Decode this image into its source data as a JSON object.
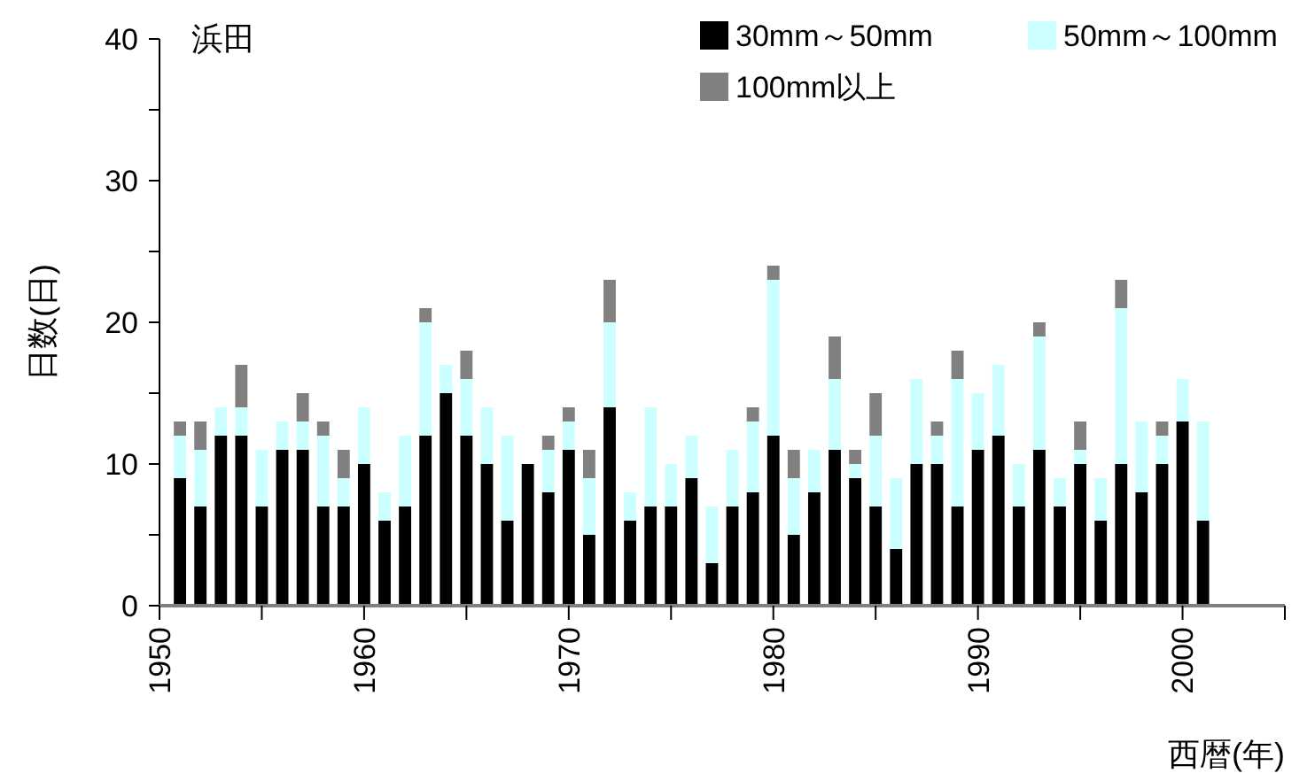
{
  "chart_data": {
    "type": "bar",
    "stacked": true,
    "title": "浜田",
    "xlabel": "西暦(年)",
    "ylabel": "日数(日)",
    "x": [
      1951,
      1952,
      1953,
      1954,
      1955,
      1956,
      1957,
      1958,
      1959,
      1960,
      1961,
      1962,
      1963,
      1964,
      1965,
      1966,
      1967,
      1968,
      1969,
      1970,
      1971,
      1972,
      1973,
      1974,
      1975,
      1976,
      1977,
      1978,
      1979,
      1980,
      1981,
      1982,
      1983,
      1984,
      1985,
      1986,
      1987,
      1988,
      1989,
      1990,
      1991,
      1992,
      1993,
      1994,
      1995,
      1996,
      1997,
      1998,
      1999,
      2000,
      2001
    ],
    "series": [
      {
        "name": "30mm～50mm",
        "color": "#000000",
        "values": [
          9,
          7,
          12,
          12,
          7,
          11,
          11,
          7,
          7,
          10,
          6,
          7,
          12,
          15,
          12,
          10,
          6,
          10,
          8,
          11,
          5,
          14,
          6,
          7,
          7,
          9,
          3,
          7,
          8,
          12,
          5,
          8,
          11,
          9,
          7,
          4,
          10,
          10,
          7,
          11,
          12,
          7,
          11,
          7,
          10,
          6,
          10,
          8,
          10,
          13,
          6
        ]
      },
      {
        "name": "50mm～100mm",
        "color": "#ccffff",
        "values": [
          3,
          4,
          2,
          2,
          4,
          2,
          2,
          5,
          2,
          4,
          2,
          5,
          8,
          2,
          4,
          4,
          6,
          0,
          3,
          2,
          4,
          6,
          2,
          7,
          3,
          3,
          4,
          4,
          5,
          11,
          4,
          3,
          5,
          1,
          5,
          5,
          6,
          2,
          9,
          4,
          5,
          3,
          8,
          2,
          1,
          3,
          11,
          5,
          2,
          3,
          7
        ]
      },
      {
        "name": "100mm以上",
        "color": "#808080",
        "values": [
          1,
          2,
          0,
          3,
          0,
          0,
          2,
          1,
          2,
          0,
          0,
          0,
          1,
          0,
          2,
          0,
          0,
          0,
          1,
          1,
          2,
          3,
          0,
          0,
          0,
          0,
          0,
          0,
          1,
          1,
          2,
          0,
          3,
          1,
          3,
          0,
          0,
          1,
          2,
          0,
          0,
          0,
          1,
          0,
          2,
          0,
          2,
          0,
          1,
          0,
          0
        ]
      }
    ],
    "xlim": [
      1950,
      2005
    ],
    "xticks": [
      1950,
      {
        "value": 1955,
        "label": null
      },
      1960,
      {
        "value": 1965,
        "label": null
      },
      1970,
      {
        "value": 1975,
        "label": null
      },
      1980,
      {
        "value": 1985,
        "label": null
      },
      1990,
      {
        "value": 1995,
        "label": null
      },
      2000,
      {
        "value": 2005,
        "label": null
      }
    ],
    "ylim": [
      0,
      40
    ],
    "yticks": [
      0,
      {
        "value": 5,
        "label": null
      },
      10,
      {
        "value": 15,
        "label": null
      },
      20,
      {
        "value": 25,
        "label": null
      },
      30,
      {
        "value": 35,
        "label": null
      },
      40
    ],
    "grid": false,
    "legend": "top right"
  }
}
